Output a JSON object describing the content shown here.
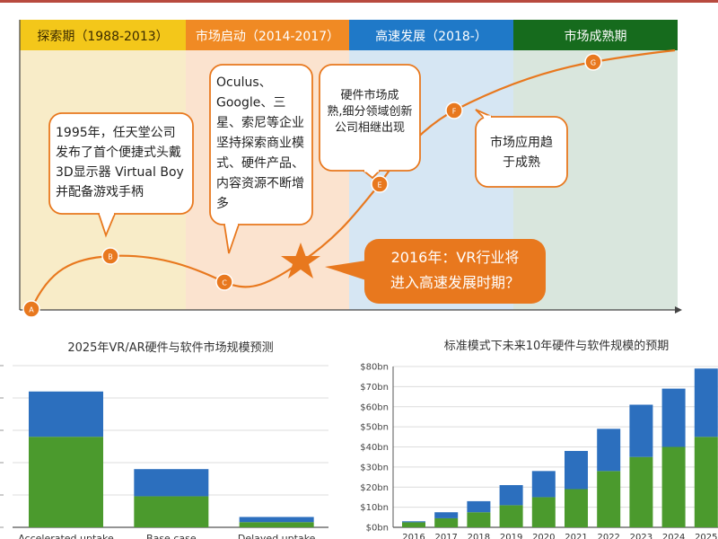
{
  "timeline": {
    "phases": [
      {
        "label": "探索期（1988-2013）",
        "header_color": "#f3c71a",
        "body_color": "#f8ecc8"
      },
      {
        "label": "市场启动（2014-2017）",
        "header_color": "#f08a24",
        "body_color": "#fbe3cf"
      },
      {
        "label": "高速发展（2018-）",
        "header_color": "#1f79c8",
        "body_color": "#d6e6f3"
      },
      {
        "label": "市场成熟期",
        "header_color": "#166b1d",
        "body_color": "#d9e6dd"
      }
    ],
    "points": [
      "A",
      "B",
      "C",
      "E",
      "F",
      "G"
    ],
    "callouts": {
      "b": [
        "1995年，任天堂公司",
        "发布了首个便捷式头戴",
        "3D显示器 Virtual Boy",
        "并配备游戏手柄"
      ],
      "c": [
        "Oculus、",
        "Google、三",
        "星、索尼等企业",
        "坚持探索商业模",
        "式、硬件产品、",
        "内容资源不断增",
        "多"
      ],
      "e": [
        "硬件市场成",
        "熟,细分领域创新",
        "公司相继出现"
      ],
      "f": [
        "市场应用趋",
        "于成熟"
      ],
      "star": [
        "2016年：VR行业将",
        "进入高速发展时期？"
      ]
    },
    "accent_color": "#e8781e"
  },
  "chart_data": [
    {
      "type": "bar",
      "title": "2025年VR/AR硬件与软件市场规模预测",
      "categories": [
        "Accelerated uptake",
        "Base case",
        "Delayed uptake"
      ],
      "series": [
        {
          "values": [
            70,
            24,
            4
          ],
          "color": "#4b9a2d"
        },
        {
          "values": [
            35,
            21,
            4
          ],
          "color": "#2c6fbe"
        }
      ],
      "ylim": [
        0,
        125
      ],
      "grid": true
    },
    {
      "type": "bar",
      "title": "标准模式下未来10年硬件与软件规模的预期",
      "categories": [
        "2016",
        "2017",
        "2018",
        "2019",
        "2020",
        "2021",
        "2022",
        "2023",
        "2024",
        "2025"
      ],
      "series": [
        {
          "values": [
            2.5,
            4.5,
            7.5,
            11,
            15,
            19,
            28,
            35,
            40,
            45
          ],
          "color": "#4b9a2d"
        },
        {
          "values": [
            0.5,
            3,
            5.5,
            10,
            13,
            19,
            21,
            26,
            29,
            34
          ],
          "color": "#2c6fbe"
        }
      ],
      "yticks": [
        "$0bn",
        "$10bn",
        "$20bn",
        "$30bn",
        "$40bn",
        "$50bn",
        "$60bn",
        "$70bn",
        "$80bn"
      ],
      "ylim": [
        0,
        80
      ],
      "grid": true
    }
  ]
}
